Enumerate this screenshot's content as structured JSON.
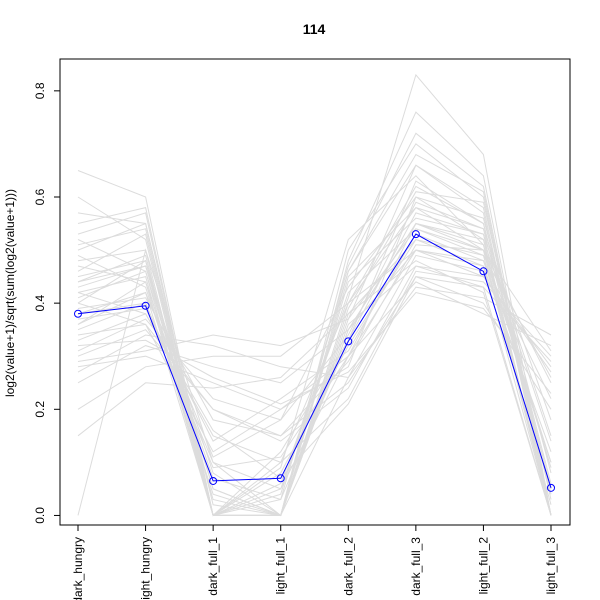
{
  "chart_data": {
    "type": "line",
    "title": "114",
    "xlabel": "",
    "ylabel": "log2(value+1)/sqrt(sum(log2(value+1)))",
    "categories": [
      "dark_hungry",
      "light_hungry",
      "dark_full_1",
      "light_full_1",
      "dark_full_2",
      "dark_full_3",
      "light_full_2",
      "light_full_3"
    ],
    "ylim": [
      -0.018,
      0.86
    ],
    "yticks": [
      0.0,
      0.2,
      0.4,
      0.6,
      0.8
    ],
    "ytick_labels": [
      "0.0",
      "0.2",
      "0.4",
      "0.6",
      "0.8"
    ],
    "grid": false,
    "legend": "none",
    "highlight_series": {
      "values": [
        0.38,
        0.395,
        0.065,
        0.07,
        0.328,
        0.53,
        0.46,
        0.052
      ],
      "color": "#0000ff",
      "marker": "open-circle"
    },
    "background_series_color": "#dcdcdc",
    "background_series": [
      [
        0.42,
        0.45,
        0.0,
        0.0,
        0.35,
        0.55,
        0.52,
        0.0
      ],
      [
        0.35,
        0.4,
        0.1,
        0.05,
        0.3,
        0.5,
        0.48,
        0.1
      ],
      [
        0.5,
        0.55,
        0.0,
        0.1,
        0.4,
        0.62,
        0.55,
        0.05
      ],
      [
        0.3,
        0.35,
        0.2,
        0.15,
        0.25,
        0.45,
        0.4,
        0.2
      ],
      [
        0.45,
        0.48,
        0.05,
        0.0,
        0.45,
        0.58,
        0.5,
        0.0
      ],
      [
        0.38,
        0.42,
        0.0,
        0.08,
        0.32,
        0.52,
        0.47,
        0.12
      ],
      [
        0.55,
        0.58,
        0.0,
        0.0,
        0.38,
        0.48,
        0.42,
        0.0
      ],
      [
        0.25,
        0.32,
        0.28,
        0.25,
        0.35,
        0.55,
        0.5,
        0.25
      ],
      [
        0.4,
        0.36,
        0.12,
        0.2,
        0.28,
        0.6,
        0.56,
        0.08
      ],
      [
        0.48,
        0.5,
        0.0,
        0.0,
        0.5,
        0.7,
        0.6,
        0.0
      ],
      [
        0.33,
        0.38,
        0.15,
        0.1,
        0.22,
        0.46,
        0.44,
        0.3
      ],
      [
        0.6,
        0.52,
        0.0,
        0.05,
        0.42,
        0.54,
        0.49,
        0.02
      ],
      [
        0.2,
        0.28,
        0.3,
        0.3,
        0.4,
        0.5,
        0.45,
        0.28
      ],
      [
        0.43,
        0.47,
        0.08,
        0.0,
        0.37,
        0.66,
        0.58,
        0.0
      ],
      [
        0.36,
        0.44,
        0.0,
        0.12,
        0.33,
        0.57,
        0.53,
        0.15
      ],
      [
        0.52,
        0.46,
        0.05,
        0.0,
        0.26,
        0.49,
        0.46,
        0.05
      ],
      [
        0.28,
        0.3,
        0.25,
        0.2,
        0.3,
        0.44,
        0.38,
        0.32
      ],
      [
        0.46,
        0.53,
        0.0,
        0.03,
        0.47,
        0.72,
        0.62,
        0.0
      ],
      [
        0.39,
        0.41,
        0.18,
        0.15,
        0.29,
        0.51,
        0.5,
        0.1
      ],
      [
        0.0,
        0.5,
        0.1,
        0.0,
        0.46,
        0.66,
        0.57,
        0.0
      ],
      [
        0.65,
        0.6,
        0.0,
        0.0,
        0.36,
        0.47,
        0.43,
        0.0
      ],
      [
        0.31,
        0.37,
        0.22,
        0.18,
        0.34,
        0.59,
        0.54,
        0.18
      ],
      [
        0.44,
        0.49,
        0.0,
        0.06,
        0.41,
        0.83,
        0.68,
        0.0
      ],
      [
        0.37,
        0.39,
        0.14,
        0.22,
        0.31,
        0.53,
        0.48,
        0.22
      ],
      [
        0.49,
        0.43,
        0.04,
        0.0,
        0.39,
        0.61,
        0.59,
        0.03
      ],
      [
        0.27,
        0.34,
        0.32,
        0.28,
        0.26,
        0.43,
        0.41,
        0.34
      ],
      [
        0.41,
        0.46,
        0.0,
        0.09,
        0.52,
        0.64,
        0.51,
        0.0
      ],
      [
        0.34,
        0.36,
        0.2,
        0.14,
        0.24,
        0.47,
        0.45,
        0.27
      ],
      [
        0.53,
        0.57,
        0.0,
        0.0,
        0.44,
        0.56,
        0.53,
        0.0
      ],
      [
        0.15,
        0.25,
        0.24,
        0.26,
        0.38,
        0.52,
        0.49,
        0.26
      ],
      [
        0.47,
        0.44,
        0.07,
        0.03,
        0.33,
        0.63,
        0.55,
        0.06
      ],
      [
        0.4,
        0.48,
        0.0,
        0.0,
        0.48,
        0.76,
        0.64,
        0.0
      ],
      [
        0.32,
        0.33,
        0.26,
        0.21,
        0.27,
        0.42,
        0.39,
        0.23
      ],
      [
        0.57,
        0.55,
        0.02,
        0.0,
        0.35,
        0.5,
        0.47,
        0.0
      ],
      [
        0.36,
        0.42,
        0.11,
        0.18,
        0.43,
        0.6,
        0.52,
        0.14
      ],
      [
        0.42,
        0.38,
        0.16,
        0.07,
        0.21,
        0.45,
        0.43,
        0.29
      ],
      [
        0.29,
        0.31,
        0.34,
        0.32,
        0.37,
        0.54,
        0.5,
        0.31
      ],
      [
        0.51,
        0.54,
        0.0,
        0.04,
        0.46,
        0.68,
        0.61,
        0.0
      ],
      [
        0.38,
        0.4,
        0.09,
        0.11,
        0.3,
        0.55,
        0.51,
        0.09
      ],
      [
        0.44,
        0.47,
        0.03,
        0.0,
        0.4,
        0.58,
        0.54,
        0.04
      ]
    ]
  }
}
